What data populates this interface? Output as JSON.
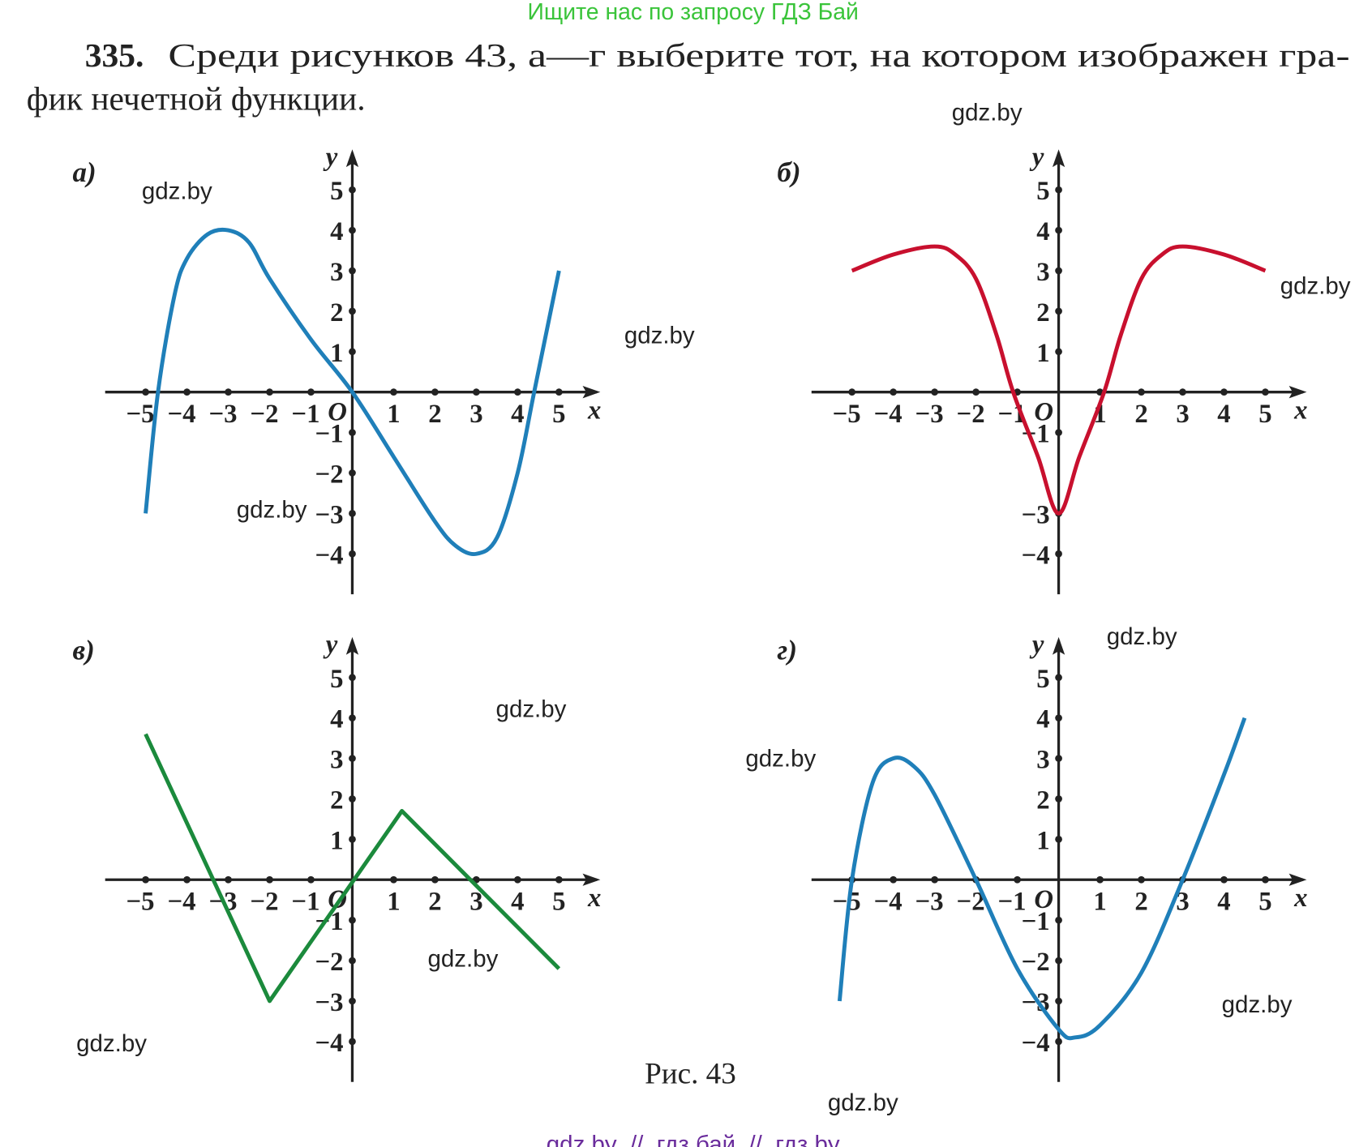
{
  "header": {
    "search_hint": "Ищите нас по запросу ГДЗ Бай"
  },
  "problem": {
    "number": "335.",
    "lines": [
      "Среди рисунков 43, а—г выберите тот, на котором изображен гра-",
      "фик нечетной функции."
    ]
  },
  "figures": [
    {
      "label": "а)",
      "x_label": "x",
      "y_label": "y",
      "origin_label": "O",
      "color": "#1f7fb9",
      "smooth": true,
      "xlim": [
        -6,
        6
      ],
      "ylim": [
        -5,
        6
      ],
      "xticks": [
        {
          "value": -5,
          "label": "−5"
        },
        {
          "value": -4,
          "label": "−4"
        },
        {
          "value": -3,
          "label": "−3"
        },
        {
          "value": -2,
          "label": "−2"
        },
        {
          "value": -1,
          "label": "−1"
        },
        1,
        2,
        3,
        4,
        5
      ],
      "yticks": [
        {
          "value": -4,
          "label": "−4"
        },
        {
          "value": -3,
          "label": "−3"
        },
        {
          "value": -2,
          "label": "−2"
        },
        {
          "value": -1,
          "label": "−1"
        },
        1,
        2,
        3,
        4,
        5
      ],
      "x": [
        -5,
        -4.7,
        -4.3,
        -4,
        -3.5,
        -3,
        -2.5,
        -2,
        -1,
        0,
        1,
        2,
        2.5,
        3,
        3.5,
        4,
        4.4,
        5
      ],
      "y": [
        -3,
        0,
        2.4,
        3.3,
        3.9,
        4,
        3.7,
        2.8,
        1.3,
        0,
        -1.6,
        -3.2,
        -3.8,
        -4,
        -3.6,
        -2,
        0,
        3
      ]
    },
    {
      "label": "б)",
      "x_label": "x",
      "y_label": "y",
      "origin_label": "O",
      "color": "#c8102e",
      "smooth": true,
      "xlim": [
        -6,
        6
      ],
      "ylim": [
        -5,
        6
      ],
      "xticks": [
        {
          "value": -5,
          "label": "−5"
        },
        {
          "value": -4,
          "label": "−4"
        },
        {
          "value": -3,
          "label": "−3"
        },
        {
          "value": -2,
          "label": "−2"
        },
        {
          "value": -1,
          "label": "−1"
        },
        1,
        2,
        3,
        4,
        5
      ],
      "yticks": [
        {
          "value": -4,
          "label": "−4"
        },
        {
          "value": -3,
          "label": "−3"
        },
        {
          "value": -1,
          "label": "−1"
        },
        1,
        2,
        3,
        4,
        5
      ],
      "x": [
        -5,
        -4,
        -3,
        -2.5,
        -2,
        -1.5,
        -1.1,
        -0.5,
        0,
        0.5,
        1.1,
        1.5,
        2,
        2.5,
        3,
        4,
        5
      ],
      "y": [
        3,
        3.4,
        3.6,
        3.4,
        2.8,
        1.4,
        0,
        -1.6,
        -3,
        -1.6,
        0,
        1.4,
        2.8,
        3.4,
        3.6,
        3.4,
        3
      ]
    },
    {
      "label": "в)",
      "x_label": "x",
      "y_label": "y",
      "origin_label": "O",
      "color": "#1b8a3c",
      "smooth": false,
      "xlim": [
        -6,
        6
      ],
      "ylim": [
        -5,
        6
      ],
      "xticks": [
        {
          "value": -5,
          "label": "−5"
        },
        {
          "value": -4,
          "label": "−4"
        },
        {
          "value": -3,
          "label": "−3"
        },
        {
          "value": -2,
          "label": "−2"
        },
        {
          "value": -1,
          "label": "−1"
        },
        1,
        2,
        3,
        4,
        5
      ],
      "yticks": [
        {
          "value": -4,
          "label": "−4"
        },
        {
          "value": -3,
          "label": "−3"
        },
        {
          "value": -2,
          "label": "−2"
        },
        {
          "value": -1,
          "label": "−1"
        },
        1,
        2,
        3,
        4,
        5
      ],
      "x": [
        -5,
        -2,
        1.2,
        5
      ],
      "y": [
        3.6,
        -3,
        1.7,
        -2.2
      ]
    },
    {
      "label": "г)",
      "x_label": "x",
      "y_label": "y",
      "origin_label": "O",
      "color": "#1f7fb9",
      "smooth": true,
      "xlim": [
        -6,
        6
      ],
      "ylim": [
        -5,
        6
      ],
      "xticks": [
        {
          "value": -5,
          "label": "−5"
        },
        {
          "value": -4,
          "label": "−4"
        },
        {
          "value": -3,
          "label": "−3"
        },
        {
          "value": -2,
          "label": "−2"
        },
        {
          "value": -1,
          "label": "−1"
        },
        1,
        2,
        3,
        4,
        5
      ],
      "yticks": [
        {
          "value": -4,
          "label": "−4"
        },
        {
          "value": -3,
          "label": "−3"
        },
        {
          "value": -2,
          "label": "−2"
        },
        {
          "value": -1,
          "label": "−1"
        },
        1,
        2,
        3,
        4,
        5
      ],
      "x": [
        -5.3,
        -5,
        -4.5,
        -4,
        -3.5,
        -3,
        -2,
        -1,
        0,
        0.4,
        1,
        2,
        3,
        4,
        4.5
      ],
      "y": [
        -3,
        0,
        2.4,
        3,
        2.8,
        2.1,
        0,
        -2.2,
        -3.7,
        -3.9,
        -3.6,
        -2.3,
        0,
        2.6,
        4
      ]
    }
  ],
  "caption": "Рис. 43",
  "watermarks": [
    "gdz.by",
    "gdz.by",
    "gdz.by",
    "gdz.by",
    "gdz.by",
    "gdz.by",
    "gdz.by",
    "gdz.by",
    "gdz.by",
    "gdz.by",
    "gdz.by",
    "gdz.by"
  ],
  "footer": "gdz by  //  гдз бай  //  гдз by"
}
